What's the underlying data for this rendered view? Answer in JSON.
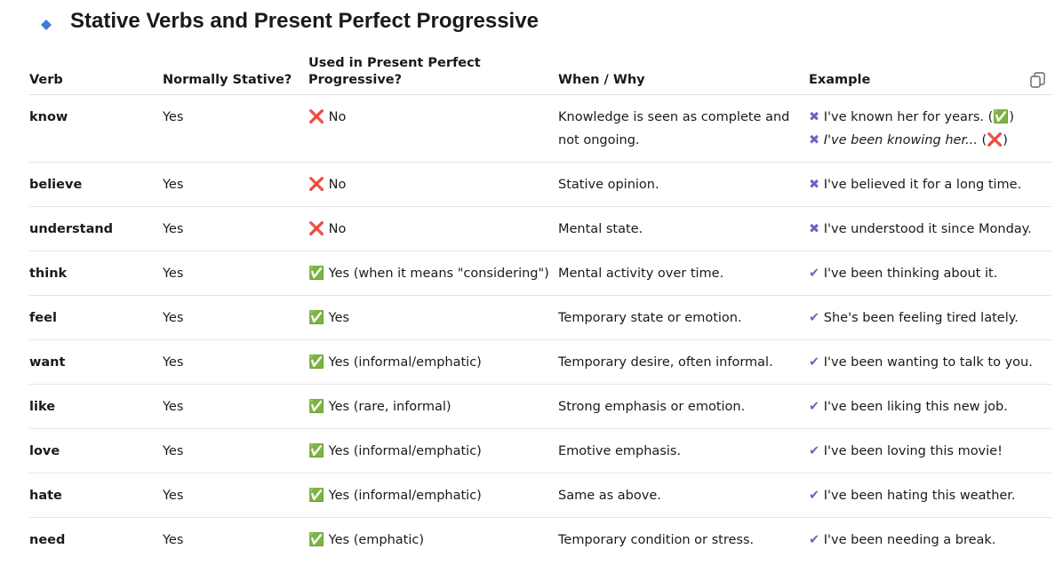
{
  "title": "Stative Verbs and Present Perfect Progressive",
  "table": {
    "headers": [
      "Verb",
      "Normally Stative?",
      "Used in Present Perfect Progressive?",
      "When / Why",
      "Example"
    ],
    "rows": [
      {
        "verb": "know",
        "stative": "Yes",
        "progressive": [
          {
            "text": "❌",
            "color": "#e8506a"
          },
          {
            "text": " No"
          }
        ],
        "why": "Knowledge is seen as complete and not ongoing.",
        "example": [
          [
            {
              "text": "✖",
              "color": "#7e5bc6"
            },
            {
              "text": " I've known her for years. ("
            },
            {
              "text": "✅",
              "color": "#3fbf6f"
            },
            {
              "text": ")"
            }
          ],
          [
            {
              "text": "✖",
              "color": "#7e5bc6"
            },
            {
              "text": " "
            },
            {
              "text": "I've been knowing her...",
              "italic": true
            },
            {
              "text": " ("
            },
            {
              "text": "❌",
              "color": "#e8506a"
            },
            {
              "text": ")"
            }
          ]
        ]
      },
      {
        "verb": "believe",
        "stative": "Yes",
        "progressive": [
          {
            "text": "❌",
            "color": "#e8506a"
          },
          {
            "text": " No"
          }
        ],
        "why": "Stative opinion.",
        "example": [
          [
            {
              "text": "✖",
              "color": "#7e5bc6"
            },
            {
              "text": " I've believed it for a long time."
            }
          ]
        ]
      },
      {
        "verb": "understand",
        "stative": "Yes",
        "progressive": [
          {
            "text": "❌",
            "color": "#e8506a"
          },
          {
            "text": " No"
          }
        ],
        "why": "Mental state.",
        "example": [
          [
            {
              "text": "✖",
              "color": "#7e5bc6"
            },
            {
              "text": " I've understood it since Monday."
            }
          ]
        ]
      },
      {
        "verb": "think",
        "stative": "Yes",
        "progressive": [
          {
            "text": "✅",
            "color": "#3fbf6f"
          },
          {
            "text": " Yes (when it means \"considering\")"
          }
        ],
        "why": "Mental activity over time.",
        "example": [
          [
            {
              "text": "✔",
              "color": "#7e5bc6"
            },
            {
              "text": " I've been thinking about it."
            }
          ]
        ]
      },
      {
        "verb": "feel",
        "stative": "Yes",
        "progressive": [
          {
            "text": "✅",
            "color": "#3fbf6f"
          },
          {
            "text": " Yes"
          }
        ],
        "why": "Temporary state or emotion.",
        "example": [
          [
            {
              "text": "✔",
              "color": "#7e5bc6"
            },
            {
              "text": " She's been feeling tired lately."
            }
          ]
        ]
      },
      {
        "verb": "want",
        "stative": "Yes",
        "progressive": [
          {
            "text": "✅",
            "color": "#3fbf6f"
          },
          {
            "text": " Yes (informal/emphatic)"
          }
        ],
        "why": "Temporary desire, often informal.",
        "example": [
          [
            {
              "text": "✔",
              "color": "#7e5bc6"
            },
            {
              "text": " I've been wanting to talk to you."
            }
          ]
        ]
      },
      {
        "verb": "like",
        "stative": "Yes",
        "progressive": [
          {
            "text": "✅",
            "color": "#3fbf6f"
          },
          {
            "text": " Yes (rare, informal)"
          }
        ],
        "why": "Strong emphasis or emotion.",
        "example": [
          [
            {
              "text": "✔",
              "color": "#7e5bc6"
            },
            {
              "text": " I've been liking this new job."
            }
          ]
        ]
      },
      {
        "verb": "love",
        "stative": "Yes",
        "progressive": [
          {
            "text": "✅",
            "color": "#3fbf6f"
          },
          {
            "text": " Yes (informal/emphatic)"
          }
        ],
        "why": "Emotive emphasis.",
        "example": [
          [
            {
              "text": "✔",
              "color": "#7e5bc6"
            },
            {
              "text": " I've been loving this movie!"
            }
          ]
        ]
      },
      {
        "verb": "hate",
        "stative": "Yes",
        "progressive": [
          {
            "text": "✅",
            "color": "#3fbf6f"
          },
          {
            "text": " Yes (informal/emphatic)"
          }
        ],
        "why": "Same as above.",
        "example": [
          [
            {
              "text": "✔",
              "color": "#7e5bc6"
            },
            {
              "text": " I've been hating this weather."
            }
          ]
        ]
      },
      {
        "verb": "need",
        "stative": "Yes",
        "progressive": [
          {
            "text": "✅",
            "color": "#3fbf6f"
          },
          {
            "text": " Yes (emphatic)"
          }
        ],
        "why": "Temporary condition or stress.",
        "example": [
          [
            {
              "text": "✔",
              "color": "#7e5bc6"
            },
            {
              "text": " I've been needing a break."
            }
          ]
        ]
      }
    ]
  }
}
